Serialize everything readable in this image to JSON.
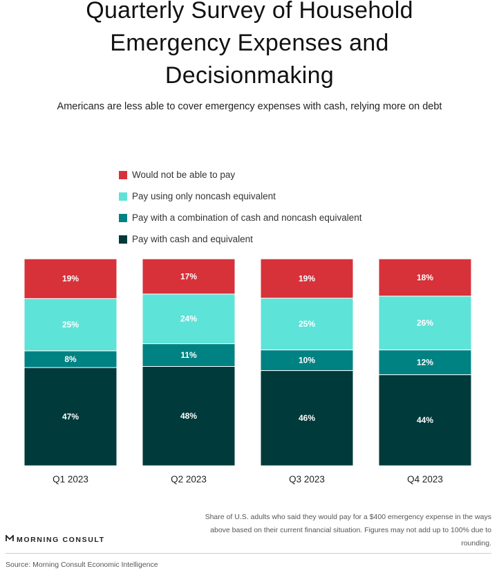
{
  "chart_data": {
    "type": "bar",
    "stacked": true,
    "title_lines": [
      "Quarterly Survey of Household",
      "Emergency Expenses and",
      "Decisionmaking"
    ],
    "subtitle": "Americans are less able to cover emergency expenses with cash, relying more on debt",
    "categories": [
      "Q1 2023",
      "Q2 2023",
      "Q3 2023",
      "Q4 2023"
    ],
    "series": [
      {
        "name": "Pay with cash and equivalent",
        "color": "#003a3a",
        "values": [
          47,
          48,
          46,
          44
        ]
      },
      {
        "name": "Pay with a combination of cash and noncash equivalent",
        "color": "#008282",
        "values": [
          8,
          11,
          10,
          12
        ]
      },
      {
        "name": "Pay using only noncash equivalent",
        "color": "#5ee3d8",
        "values": [
          25,
          24,
          25,
          26
        ]
      },
      {
        "name": "Would not be able to pay",
        "color": "#d7313a",
        "values": [
          19,
          17,
          19,
          18
        ]
      }
    ],
    "legend_order": [
      "Would not be able to pay",
      "Pay using only noncash equivalent",
      "Pay with a combination of cash and noncash equivalent",
      "Pay with cash and equivalent"
    ],
    "value_suffix": "%",
    "ylim": [
      0,
      100
    ],
    "grid": false,
    "legend_position": "top-left"
  },
  "note": "Share of U.S. adults who said they would pay for a $400 emergency expense in the ways above based on their current financial situation. Figures may not add up to 100% due to rounding.",
  "logo_text": "MORNING CONSULT",
  "source": "Source: Morning Consult Economic Intelligence"
}
